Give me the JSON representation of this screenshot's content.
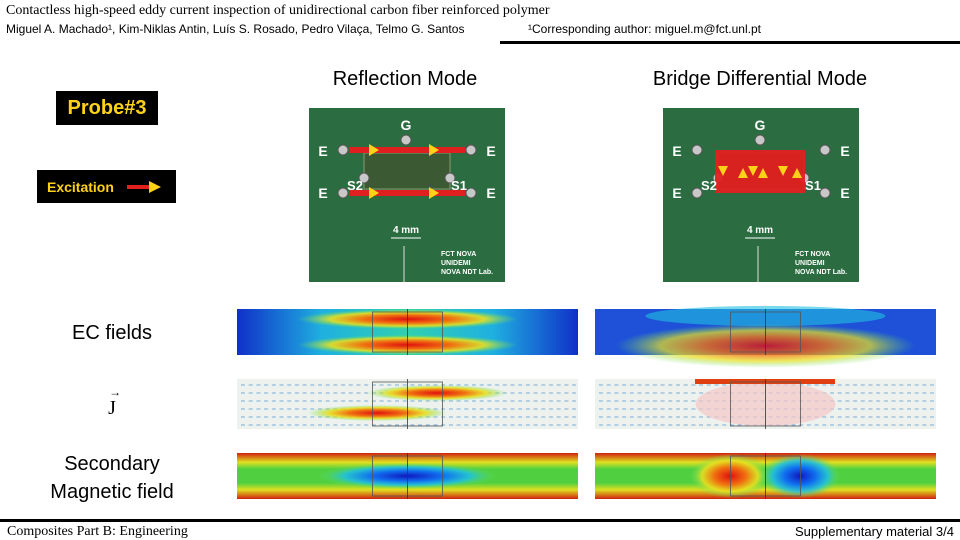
{
  "header": {
    "title": "Contactless high-speed eddy current inspection of unidirectional carbon fiber reinforced polymer",
    "authors": "Miguel A. Machado¹, Kim-Niklas Antin, Luís S. Rosado, Pedro Vilaça, Telmo G. Santos",
    "correspondence": "¹Corresponding author: miguel.m@fct.unl.pt"
  },
  "probe": {
    "label": "Probe#3",
    "excitation": "Excitation"
  },
  "columns": [
    "Reflection Mode",
    "Bridge Differential Mode"
  ],
  "rows": [
    "EC fields",
    "J",
    "Secondary Magnetic field"
  ],
  "pcb_labels": {
    "ground": "G",
    "excitation": "E",
    "sensor_left": "S2",
    "sensor_right": "S1",
    "scale": "4 mm",
    "credits": [
      "FCT NOVA",
      "UNIDEMI",
      "NOVA NDT Lab."
    ]
  },
  "footer": {
    "journal": "Composites Part B: Engineering",
    "page": "Supplementary material 3/4"
  }
}
